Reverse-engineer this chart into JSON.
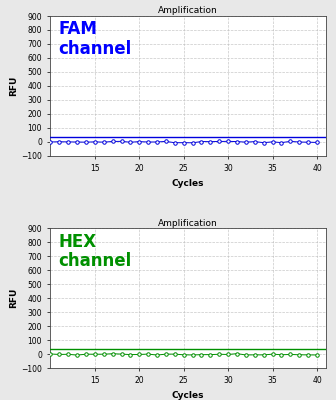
{
  "title": "Amplification",
  "xlabel": "Cycles",
  "ylabel": "RFU",
  "xlim": [
    10,
    41
  ],
  "ylim": [
    -100,
    900
  ],
  "yticks": [
    -100,
    0,
    100,
    200,
    300,
    400,
    500,
    600,
    700,
    800,
    900
  ],
  "xticks": [
    15,
    20,
    25,
    30,
    35,
    40
  ],
  "panel1": {
    "label": "FAM\nchannel",
    "label_color": "#0000FF",
    "line_color": "#0000DD",
    "marker_color": "#0000DD",
    "threshold_color": "#0000DD",
    "threshold_y": 35
  },
  "panel2": {
    "label": "HEX\nchannel",
    "label_color": "#009000",
    "line_color": "#009000",
    "marker_color": "#009000",
    "threshold_color": "#009000",
    "threshold_y": 35
  },
  "background_color": "#ffffff",
  "fig_background": "#e8e8e8",
  "grid_color": "#bbbbbb",
  "num_cycles": 40,
  "start_cycle": 10
}
